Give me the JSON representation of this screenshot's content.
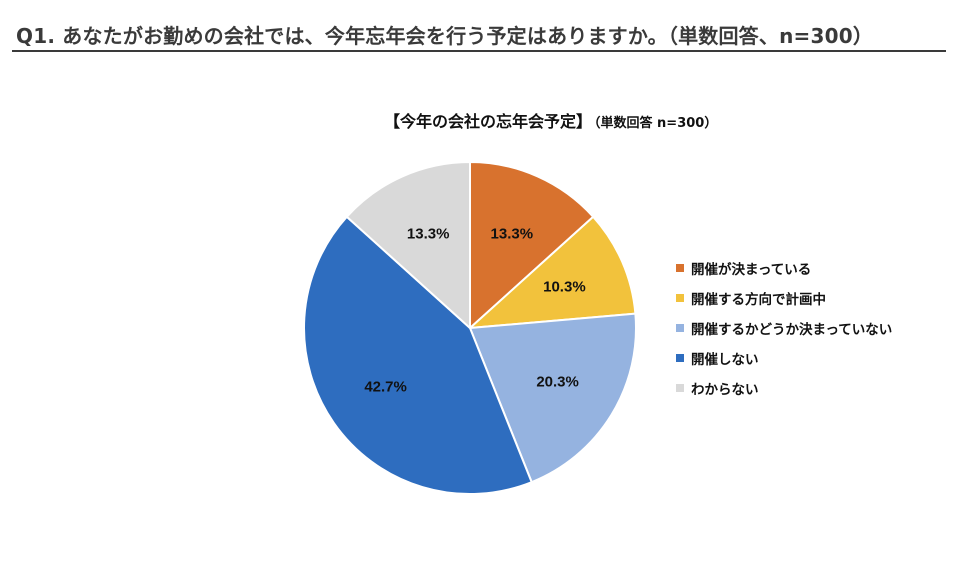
{
  "question": "Q1. あなたがお勤めの会社では、今年忘年会を行う予定はありますか。（単数回答、n=300）",
  "chart_data": {
    "type": "pie",
    "title": "【今年の会社の忘年会予定】",
    "subtitle": "（単数回答 n=300）",
    "slices": [
      {
        "label": "開催が決まっている",
        "value": 13.3,
        "display": "13.3%",
        "color": "#D8722E"
      },
      {
        "label": "開催する方向で計画中",
        "value": 10.3,
        "display": "10.3%",
        "color": "#F2C23C"
      },
      {
        "label": "開催するかどうか決まっていない",
        "value": 20.3,
        "display": "20.3%",
        "color": "#95B3E0"
      },
      {
        "label": "開催しない",
        "value": 42.7,
        "display": "42.7%",
        "color": "#2E6DBF"
      },
      {
        "label": "わからない",
        "value": 13.3,
        "display": "13.3%",
        "color": "#D9D9D9"
      }
    ],
    "legend_position": "right"
  }
}
